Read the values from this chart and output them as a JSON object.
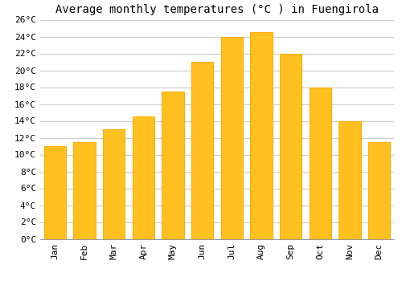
{
  "title": "Average monthly temperatures (°C ) in Fuengirola",
  "months": [
    "Jan",
    "Feb",
    "Mar",
    "Apr",
    "May",
    "Jun",
    "Jul",
    "Aug",
    "Sep",
    "Oct",
    "Nov",
    "Dec"
  ],
  "temperatures": [
    11,
    11.5,
    13,
    14.5,
    17.5,
    21,
    24,
    24.5,
    22,
    18,
    14,
    11.5
  ],
  "bar_color": "#FFC020",
  "bar_edge_color": "#FFAA00",
  "ylim": [
    0,
    26
  ],
  "yticks": [
    0,
    2,
    4,
    6,
    8,
    10,
    12,
    14,
    16,
    18,
    20,
    22,
    24,
    26
  ],
  "background_color": "#FFFFFF",
  "grid_color": "#CCCCCC",
  "title_fontsize": 10,
  "tick_fontsize": 8,
  "font_family": "monospace"
}
